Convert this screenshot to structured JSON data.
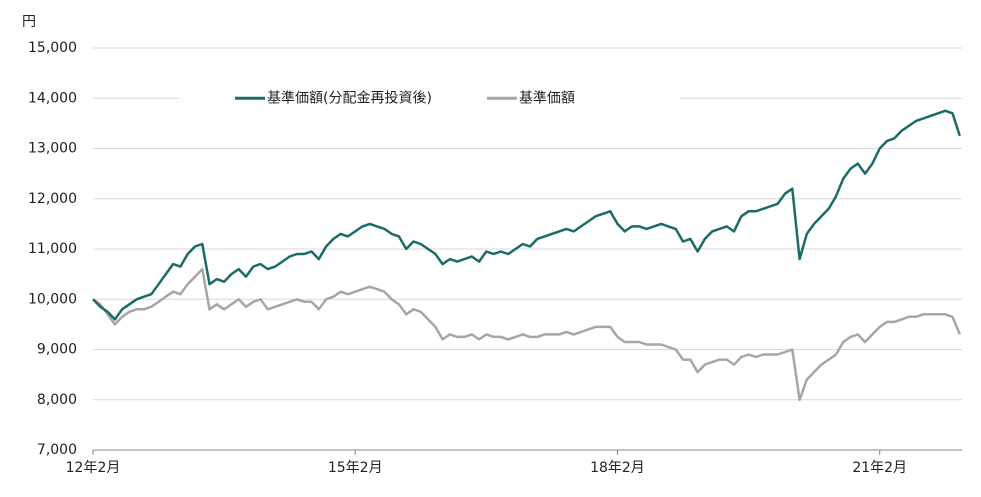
{
  "chart_data": {
    "type": "line",
    "y_unit": "円",
    "categories": [
      "12年2月",
      null,
      null,
      null,
      null,
      null,
      null,
      null,
      null,
      null,
      null,
      null,
      null,
      null,
      null,
      null,
      null,
      null,
      null,
      null,
      null,
      null,
      null,
      null,
      null,
      null,
      null,
      null,
      null,
      null,
      null,
      null,
      null,
      null,
      null,
      null,
      "15年2月",
      null,
      null,
      null,
      null,
      null,
      null,
      null,
      null,
      null,
      null,
      null,
      null,
      null,
      null,
      null,
      null,
      null,
      null,
      null,
      null,
      null,
      null,
      null,
      null,
      null,
      null,
      null,
      null,
      null,
      null,
      null,
      null,
      null,
      null,
      null,
      "18年2月",
      null,
      null,
      null,
      null,
      null,
      null,
      null,
      null,
      null,
      null,
      null,
      null,
      null,
      null,
      null,
      null,
      null,
      null,
      null,
      null,
      null,
      null,
      null,
      null,
      null,
      null,
      null,
      null,
      null,
      null,
      null,
      null,
      null,
      null,
      null,
      "21年2月",
      null,
      null,
      null,
      null,
      null,
      null,
      null,
      null,
      null,
      null,
      null
    ],
    "series": [
      {
        "name": "基準価額(分配金再投資後)",
        "color": "#1b6b6b",
        "values": [
          10000,
          9850,
          9750,
          9600,
          9800,
          9900,
          10000,
          10050,
          10100,
          10300,
          10500,
          10700,
          10650,
          10900,
          11050,
          11100,
          10300,
          10400,
          10350,
          10500,
          10600,
          10450,
          10650,
          10700,
          10600,
          10650,
          10750,
          10850,
          10900,
          10900,
          10950,
          10800,
          11050,
          11200,
          11300,
          11250,
          11350,
          11450,
          11500,
          11450,
          11400,
          11300,
          11250,
          11000,
          11150,
          11100,
          11000,
          10900,
          10700,
          10800,
          10750,
          10800,
          10850,
          10750,
          10950,
          10900,
          10950,
          10900,
          11000,
          11100,
          11050,
          11200,
          11250,
          11300,
          11350,
          11400,
          11350,
          11450,
          11550,
          11650,
          11700,
          11750,
          11500,
          11350,
          11450,
          11450,
          11400,
          11450,
          11500,
          11450,
          11400,
          11150,
          11200,
          10950,
          11200,
          11350,
          11400,
          11450,
          11350,
          11650,
          11750,
          11750,
          11800,
          11850,
          11900,
          12100,
          12200,
          10800,
          11300,
          11500,
          11650,
          11800,
          12050,
          12400,
          12600,
          12700,
          12500,
          12700,
          13000,
          13150,
          13200,
          13350,
          13450,
          13550,
          13600,
          13650,
          13700,
          13750,
          13700,
          13250
        ]
      },
      {
        "name": "基準価額",
        "color": "#a6a6a6",
        "values": [
          10000,
          9900,
          9700,
          9500,
          9650,
          9750,
          9800,
          9800,
          9850,
          9950,
          10050,
          10150,
          10100,
          10300,
          10450,
          10600,
          9800,
          9900,
          9800,
          9900,
          10000,
          9850,
          9950,
          10000,
          9800,
          9850,
          9900,
          9950,
          10000,
          9950,
          9950,
          9800,
          10000,
          10050,
          10150,
          10100,
          10150,
          10200,
          10250,
          10200,
          10150,
          10000,
          9900,
          9700,
          9800,
          9750,
          9600,
          9450,
          9200,
          9300,
          9250,
          9250,
          9300,
          9200,
          9300,
          9250,
          9250,
          9200,
          9250,
          9300,
          9250,
          9250,
          9300,
          9300,
          9300,
          9350,
          9300,
          9350,
          9400,
          9450,
          9450,
          9450,
          9250,
          9150,
          9150,
          9150,
          9100,
          9100,
          9100,
          9050,
          9000,
          8800,
          8800,
          8550,
          8700,
          8750,
          8800,
          8800,
          8700,
          8850,
          8900,
          8850,
          8900,
          8900,
          8900,
          8950,
          9000,
          8000,
          8400,
          8550,
          8700,
          8800,
          8900,
          9150,
          9250,
          9300,
          9150,
          9300,
          9450,
          9550,
          9550,
          9600,
          9650,
          9650,
          9700,
          9700,
          9700,
          9700,
          9650,
          9300
        ]
      }
    ],
    "ylim": [
      7000,
      15000
    ],
    "yticks": [
      {
        "value": 7000,
        "label": "7,000"
      },
      {
        "value": 8000,
        "label": "8,000"
      },
      {
        "value": 9000,
        "label": "9,000"
      },
      {
        "value": 10000,
        "label": "10,000"
      },
      {
        "value": 11000,
        "label": "11,000"
      },
      {
        "value": 12000,
        "label": "12,000"
      },
      {
        "value": 13000,
        "label": "13,000"
      },
      {
        "value": 14000,
        "label": "14,000"
      },
      {
        "value": 15000,
        "label": "15,000"
      }
    ],
    "grid": true,
    "legend": "top"
  }
}
